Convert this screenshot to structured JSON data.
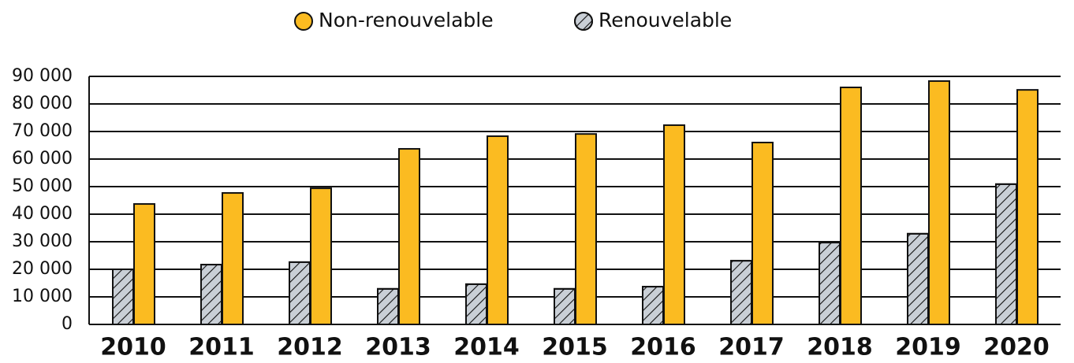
{
  "chart_data": {
    "type": "bar",
    "categories": [
      "2010",
      "2011",
      "2012",
      "2013",
      "2014",
      "2015",
      "2016",
      "2017",
      "2018",
      "2019",
      "2020"
    ],
    "series": [
      {
        "name": "Renouvelable",
        "color": "#c9cfd6",
        "pattern": "hatch",
        "values": [
          20000,
          21700,
          22600,
          12900,
          14600,
          12900,
          13700,
          23100,
          29700,
          32900,
          50900
        ]
      },
      {
        "name": "Non-renouvelable",
        "color": "#fbbb21",
        "values": [
          43700,
          47700,
          49400,
          63700,
          68300,
          69100,
          72300,
          66000,
          86000,
          88300,
          85100
        ]
      }
    ],
    "legend_order": [
      1,
      0
    ],
    "ylim": [
      0,
      90000
    ],
    "yticks": [
      0,
      {
        "value": 10000,
        "label": "10 000"
      },
      {
        "value": 20000,
        "label": "20 000"
      },
      {
        "value": 30000,
        "label": "30 000"
      },
      {
        "value": 40000,
        "label": "40 000"
      },
      {
        "value": 50000,
        "label": "50 000"
      },
      {
        "value": 60000,
        "label": "60 000"
      },
      {
        "value": 70000,
        "label": "70 000"
      },
      {
        "value": 80000,
        "label": "80 000"
      },
      {
        "value": 90000,
        "label": "90 000"
      }
    ],
    "grid": true
  }
}
